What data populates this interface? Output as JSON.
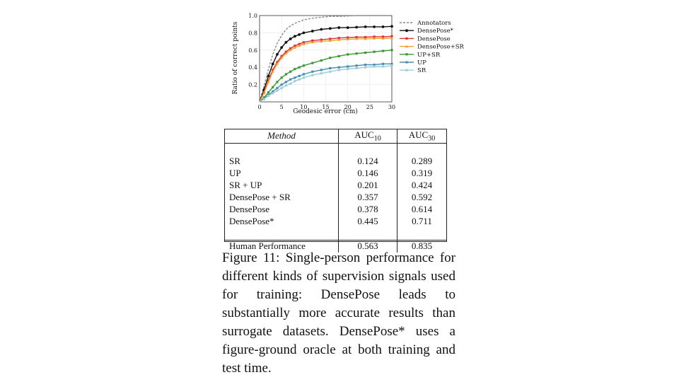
{
  "chart_data": {
    "type": "line",
    "xlabel": "Geodesic error (cm)",
    "ylabel": "Ratio of correct points",
    "xlim": [
      0,
      30
    ],
    "ylim": [
      0,
      1.0
    ],
    "x_ticks": [
      "0",
      "5",
      "10",
      "15",
      "20",
      "25",
      "30"
    ],
    "y_ticks": [
      "0.2",
      "0.4",
      "0.6",
      "0.8",
      "1.0"
    ],
    "legend_position": "right",
    "x": [
      0,
      1,
      2,
      3,
      4,
      5,
      6,
      7,
      8,
      9,
      10,
      12,
      14,
      16,
      18,
      20,
      22,
      24,
      26,
      28,
      30
    ],
    "series": [
      {
        "name": "Annotators",
        "color": "#888888",
        "style": "dashed",
        "marker": "none",
        "values": [
          0,
          0.18,
          0.38,
          0.55,
          0.68,
          0.77,
          0.84,
          0.88,
          0.91,
          0.93,
          0.95,
          0.97,
          0.98,
          0.99,
          0.99,
          0.995,
          1.0,
          1.0,
          1.0,
          1.0,
          1.0
        ]
      },
      {
        "name": "DensePose*",
        "color": "#111111",
        "style": "solid",
        "marker": "circle",
        "values": [
          0,
          0.14,
          0.3,
          0.44,
          0.55,
          0.63,
          0.69,
          0.73,
          0.76,
          0.78,
          0.8,
          0.82,
          0.84,
          0.85,
          0.86,
          0.86,
          0.865,
          0.87,
          0.87,
          0.87,
          0.875
        ]
      },
      {
        "name": "DensePose",
        "color": "#e03030",
        "style": "solid",
        "marker": "square",
        "values": [
          0,
          0.11,
          0.25,
          0.37,
          0.46,
          0.53,
          0.58,
          0.62,
          0.65,
          0.67,
          0.69,
          0.71,
          0.72,
          0.73,
          0.74,
          0.745,
          0.75,
          0.75,
          0.755,
          0.755,
          0.76
        ]
      },
      {
        "name": "DensePose+SR",
        "color": "#f0a030",
        "style": "solid",
        "marker": "triangle",
        "values": [
          0,
          0.1,
          0.23,
          0.35,
          0.44,
          0.51,
          0.56,
          0.6,
          0.63,
          0.65,
          0.67,
          0.69,
          0.7,
          0.71,
          0.72,
          0.725,
          0.73,
          0.73,
          0.735,
          0.735,
          0.74
        ]
      },
      {
        "name": "UP+SR",
        "color": "#3a9a30",
        "style": "solid",
        "marker": "square",
        "values": [
          0,
          0.05,
          0.11,
          0.17,
          0.23,
          0.28,
          0.32,
          0.35,
          0.38,
          0.4,
          0.42,
          0.45,
          0.48,
          0.51,
          0.53,
          0.55,
          0.56,
          0.57,
          0.58,
          0.59,
          0.6
        ]
      },
      {
        "name": "UP",
        "color": "#4a8fb0",
        "style": "solid",
        "marker": "square",
        "values": [
          0,
          0.04,
          0.08,
          0.12,
          0.16,
          0.2,
          0.23,
          0.26,
          0.28,
          0.3,
          0.32,
          0.35,
          0.37,
          0.39,
          0.4,
          0.41,
          0.42,
          0.43,
          0.43,
          0.44,
          0.44
        ]
      },
      {
        "name": "SR",
        "color": "#9ecfd8",
        "style": "solid",
        "marker": "square",
        "values": [
          0,
          0.03,
          0.07,
          0.1,
          0.13,
          0.16,
          0.19,
          0.21,
          0.24,
          0.26,
          0.28,
          0.31,
          0.33,
          0.35,
          0.37,
          0.38,
          0.39,
          0.4,
          0.41,
          0.41,
          0.42
        ]
      }
    ]
  },
  "table": {
    "header": {
      "method": "Method",
      "auc10": "AUC",
      "auc10_sub": "10",
      "auc30": "AUC",
      "auc30_sub": "30"
    },
    "rows": [
      {
        "method": "SR",
        "auc10": "0.124",
        "auc30": "0.289"
      },
      {
        "method": "UP",
        "auc10": "0.146",
        "auc30": "0.319"
      },
      {
        "method": "SR + UP",
        "auc10": "0.201",
        "auc30": "0.424"
      },
      {
        "method": "DensePose + SR",
        "auc10": "0.357",
        "auc30": "0.592"
      },
      {
        "method": "DensePose",
        "auc10": "0.378",
        "auc30": "0.614"
      },
      {
        "method": "DensePose*",
        "auc10": "0.445",
        "auc30": "0.711"
      }
    ],
    "human": {
      "method": "Human Performance",
      "auc10": "0.563",
      "auc30": "0.835"
    }
  },
  "caption": {
    "text": "Figure 11: Single-person performance for different kinds of supervision signals used for training: DensePose leads to substantially more accurate results than surrogate datasets. DensePose* uses a figure-ground oracle at both training and test time."
  }
}
